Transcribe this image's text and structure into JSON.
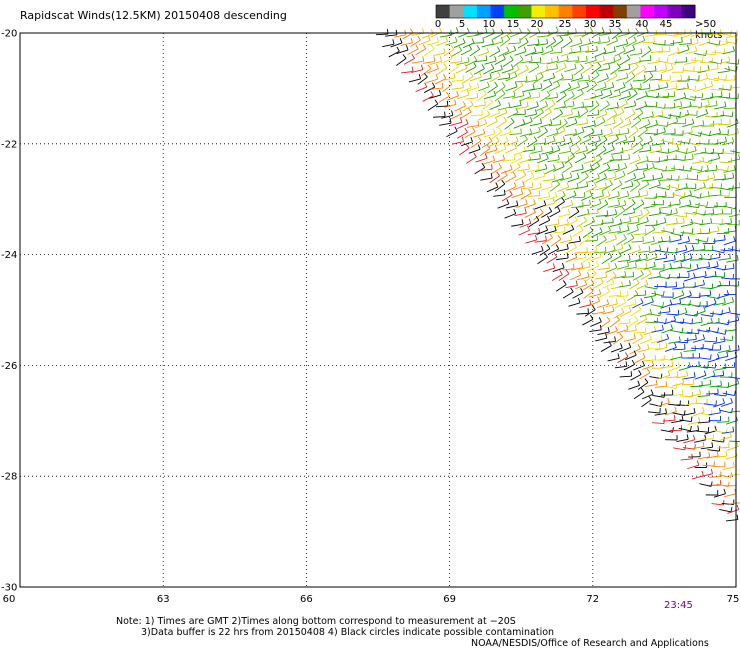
{
  "title": "Rapidscat Winds(12.5KM) 20150408 descending",
  "colorbar": {
    "labels": [
      "0",
      "5",
      "10",
      "15",
      "20",
      "25",
      "30",
      "35",
      "40",
      "45",
      ">50 knots"
    ],
    "colors": [
      "#404040",
      "#a0a0a0",
      "#00e0ff",
      "#00a0ff",
      "#0040ff",
      "#00c000",
      "#40a000",
      "#f0f000",
      "#ffc000",
      "#ff8000",
      "#ff4000",
      "#ff0000",
      "#c00000",
      "#804000",
      "#a0a0a0",
      "#ff00ff",
      "#c000ff",
      "#8000c0",
      "#400080"
    ]
  },
  "chart_data": {
    "type": "scatter",
    "title": "Rapidscat Winds(12.5KM) 20150408 descending",
    "x_ticks": [
      "60",
      "63",
      "66",
      "69",
      "72",
      "75"
    ],
    "y_ticks": [
      "-20",
      "-22",
      "-24",
      "-26",
      "-28",
      "-30"
    ],
    "xlim": [
      60,
      75
    ],
    "ylim": [
      -30,
      -20
    ],
    "grid": true,
    "swath_east_edge_lon": 75,
    "swath_west_edge": [
      [
        67.5,
        -20
      ],
      [
        75,
        -29
      ]
    ],
    "time_annotation": "23:45"
  },
  "notes": {
    "line1": "Note: 1) Times are GMT 2)Times along bottom correspond to measurement at −20S",
    "line2": "3)Data buffer is 22 hrs from 20150408 4) Black circles indicate possible contamination",
    "line3": "NOAA/NESDIS/Office of Research and Applications"
  }
}
